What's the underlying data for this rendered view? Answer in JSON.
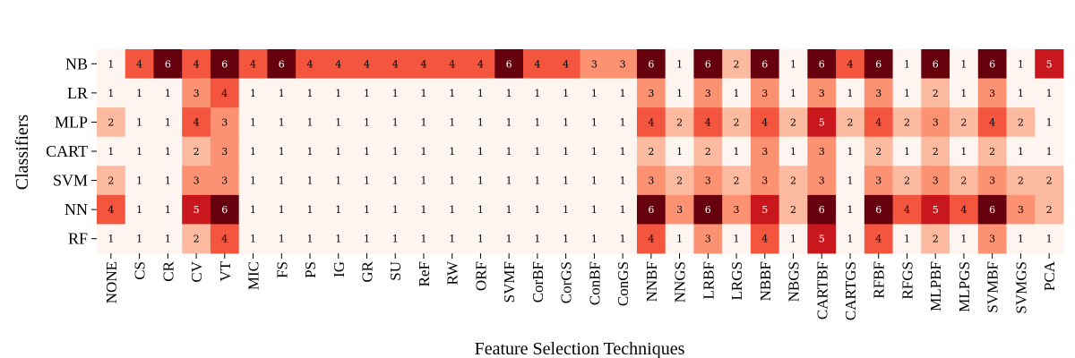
{
  "chart_data": {
    "type": "heatmap",
    "title": "",
    "xlabel": "Feature Selection Techniques",
    "ylabel": "Classifiers",
    "rows": [
      "NB",
      "LR",
      "MLP",
      "CART",
      "SVM",
      "NN",
      "RF"
    ],
    "columns": [
      "NONE",
      "CS",
      "CR",
      "CV",
      "VT",
      "MIC",
      "FS",
      "PS",
      "IG",
      "GR",
      "SU",
      "ReF",
      "RW",
      "ORF",
      "SVMF",
      "CorBF",
      "CorGS",
      "ConBF",
      "ConGS",
      "NNBF",
      "NNGS",
      "LRBF",
      "LRGS",
      "NBBF",
      "NBGS",
      "CARTBF",
      "CARTGS",
      "RFBF",
      "RFGS",
      "MLPBF",
      "MLPGS",
      "SVMBF",
      "SVMGS",
      "PCA"
    ],
    "values": [
      [
        1,
        4,
        6,
        4,
        6,
        4,
        6,
        4,
        4,
        4,
        4,
        4,
        4,
        4,
        6,
        4,
        4,
        3,
        3,
        6,
        1,
        6,
        2,
        6,
        1,
        6,
        4,
        6,
        1,
        6,
        1,
        6,
        1,
        5
      ],
      [
        1,
        1,
        1,
        3,
        4,
        1,
        1,
        1,
        1,
        1,
        1,
        1,
        1,
        1,
        1,
        1,
        1,
        1,
        1,
        3,
        1,
        3,
        1,
        3,
        1,
        3,
        1,
        3,
        1,
        2,
        1,
        3,
        1,
        1
      ],
      [
        2,
        1,
        1,
        4,
        3,
        1,
        1,
        1,
        1,
        1,
        1,
        1,
        1,
        1,
        1,
        1,
        1,
        1,
        1,
        4,
        2,
        4,
        2,
        4,
        2,
        5,
        2,
        4,
        2,
        3,
        2,
        4,
        2,
        1
      ],
      [
        1,
        1,
        1,
        2,
        3,
        1,
        1,
        1,
        1,
        1,
        1,
        1,
        1,
        1,
        1,
        1,
        1,
        1,
        1,
        2,
        1,
        2,
        1,
        3,
        1,
        3,
        1,
        2,
        1,
        2,
        1,
        2,
        1,
        1
      ],
      [
        2,
        1,
        1,
        3,
        3,
        1,
        1,
        1,
        1,
        1,
        1,
        1,
        1,
        1,
        1,
        1,
        1,
        1,
        1,
        3,
        2,
        3,
        2,
        3,
        2,
        3,
        1,
        3,
        2,
        3,
        2,
        3,
        2,
        2
      ],
      [
        4,
        1,
        1,
        5,
        6,
        1,
        1,
        1,
        1,
        1,
        1,
        1,
        1,
        1,
        1,
        1,
        1,
        1,
        1,
        6,
        3,
        6,
        3,
        5,
        2,
        6,
        1,
        6,
        4,
        5,
        4,
        6,
        3,
        2
      ],
      [
        1,
        1,
        1,
        2,
        4,
        1,
        1,
        1,
        1,
        1,
        1,
        1,
        1,
        1,
        1,
        1,
        1,
        1,
        1,
        4,
        1,
        3,
        1,
        4,
        1,
        5,
        1,
        4,
        1,
        2,
        1,
        3,
        1,
        1
      ]
    ],
    "vmin": 1,
    "vmax": 6,
    "colormap": [
      "#fff5f0",
      "#fcbba1",
      "#fc9272",
      "#f4553f",
      "#c9181d",
      "#67000d"
    ]
  }
}
